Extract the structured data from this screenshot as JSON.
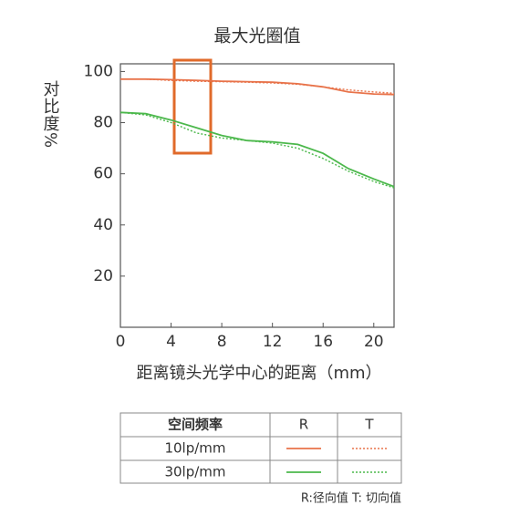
{
  "chart_data": {
    "type": "line",
    "title": "最大光圈值",
    "ylabel": "对比度%",
    "xlabel": "距离镜头光学中心的距离（mm）",
    "x": [
      0,
      2,
      4,
      6,
      8,
      10,
      12,
      14,
      16,
      18,
      20,
      21.6
    ],
    "series": [
      {
        "color": "#e8734a",
        "dashed": false,
        "values": [
          97,
          97,
          96.8,
          96.5,
          96.2,
          96,
          95.8,
          95.2,
          94,
          92,
          91.2,
          91
        ]
      },
      {
        "color": "#e8734a",
        "dashed": true,
        "values": [
          97,
          97,
          96.5,
          96.2,
          96,
          95.8,
          95.5,
          95,
          94,
          92.8,
          92,
          91.5
        ]
      },
      {
        "color": "#4cb84c",
        "dashed": false,
        "values": [
          84,
          83.5,
          81,
          78,
          75,
          73,
          72.5,
          71.5,
          68,
          62,
          58,
          55
        ]
      },
      {
        "color": "#4cb84c",
        "dashed": true,
        "values": [
          84,
          83,
          80,
          76,
          74,
          73,
          72,
          70,
          66,
          61,
          57,
          54.5
        ]
      }
    ],
    "xlim": [
      0,
      21.6
    ],
    "xticks": [
      0,
      4,
      8,
      12,
      16,
      20
    ],
    "ylim": [
      0,
      103
    ],
    "yticks": [
      20,
      40,
      60,
      80,
      100
    ],
    "legend_table": {
      "header": [
        "空间频率",
        "R",
        "T"
      ],
      "rows": [
        "10lp/mm",
        "30lp/mm"
      ]
    },
    "note": "R:径向值 T:  切向值"
  }
}
